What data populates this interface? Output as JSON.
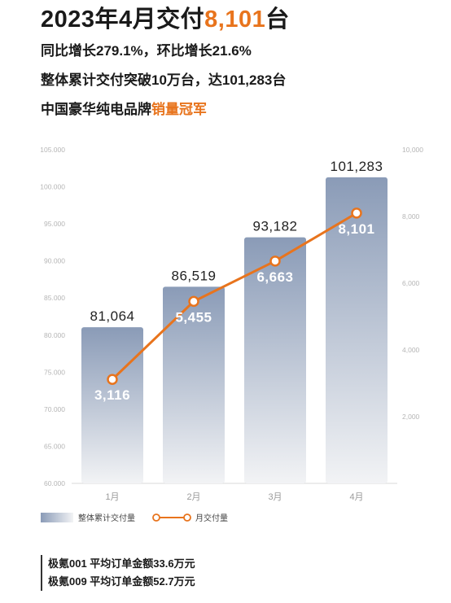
{
  "header": {
    "title_main": "2023年4月交付",
    "title_number": "8,101",
    "title_suffix": "台",
    "line1": "同比增长279.1%，环比增长21.6%",
    "line2": "整体累计交付突破10万台，达101,283台",
    "line3_main": "中国豪华纯电品牌",
    "line3_accent": "销量冠军"
  },
  "colors": {
    "accent": "#e8741d",
    "bar_top": "#8a9bb7",
    "bar_bottom": "#f2f3f5",
    "line": "#e8741d"
  },
  "chart_data": {
    "type": "bar",
    "categories": [
      "1月",
      "2月",
      "3月",
      "4月"
    ],
    "series": [
      {
        "name": "整体累计交付量",
        "type": "bar",
        "axis": "left",
        "values": [
          81064,
          86519,
          93182,
          101283
        ],
        "labels": [
          "81,064",
          "86,519",
          "93,182",
          "101,283"
        ]
      },
      {
        "name": "月交付量",
        "type": "line",
        "axis": "right",
        "values": [
          3116,
          5455,
          6663,
          8101
        ],
        "labels": [
          "3,116",
          "5,455",
          "6,663",
          "8,101"
        ]
      }
    ],
    "y_left": {
      "lim": [
        60000,
        105000
      ],
      "ticks": [
        "60.000",
        "65.000",
        "70.000",
        "75.000",
        "80.000",
        "85.000",
        "90.000",
        "95.000",
        "100.000",
        "105.000"
      ]
    },
    "y_right": {
      "lim": [
        0,
        10000
      ],
      "ticks": [
        "",
        "2,000",
        "4,000",
        "6,000",
        "8,000",
        "10,000"
      ]
    },
    "grid": false,
    "legend_position": "bottom-left"
  },
  "footer": {
    "items": [
      "极氪001 平均订单金额33.6万元",
      "极氪009 平均订单金额52.7万元"
    ]
  }
}
